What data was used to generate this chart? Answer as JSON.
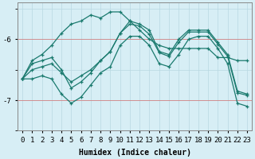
{
  "xlabel": "Humidex (Indice chaleur)",
  "background_color": "#d7eef5",
  "grid_color": "#b8d8e2",
  "line_color": "#1a7a6e",
  "xlim": [
    -0.5,
    23.5
  ],
  "ylim": [
    -7.5,
    -5.4
  ],
  "yticks": [
    -7,
    -6
  ],
  "xticks": [
    0,
    1,
    2,
    3,
    4,
    5,
    6,
    7,
    8,
    9,
    10,
    11,
    12,
    13,
    14,
    15,
    16,
    17,
    18,
    19,
    20,
    21,
    22,
    23
  ],
  "line1_x": [
    0,
    1,
    2,
    3,
    4,
    5,
    6,
    7,
    8,
    9,
    10,
    11,
    12,
    13,
    14,
    15,
    16,
    17,
    18,
    19,
    20,
    21,
    22,
    23
  ],
  "line1_y": [
    -6.65,
    -6.4,
    -6.35,
    -6.3,
    -6.5,
    -6.8,
    -6.7,
    -6.55,
    -6.35,
    -6.2,
    -5.9,
    -5.7,
    -5.75,
    -5.85,
    -6.2,
    -6.25,
    -6.0,
    -5.85,
    -5.85,
    -5.85,
    -6.05,
    -6.25,
    -6.85,
    -6.9
  ],
  "line2_x": [
    0,
    1,
    2,
    3,
    4,
    5,
    6,
    7,
    8,
    9,
    10,
    11,
    12,
    13,
    14,
    15,
    16,
    17,
    18,
    19,
    20,
    21,
    22,
    23
  ],
  "line2_y": [
    -6.65,
    -6.65,
    -6.6,
    -6.65,
    -6.9,
    -7.05,
    -6.95,
    -6.75,
    -6.55,
    -6.45,
    -6.1,
    -5.95,
    -5.95,
    -6.1,
    -6.4,
    -6.45,
    -6.25,
    -6.0,
    -5.95,
    -5.95,
    -6.15,
    -6.4,
    -7.05,
    -7.1
  ],
  "line3_x": [
    0,
    1,
    2,
    3,
    4,
    5,
    6,
    7,
    8,
    9,
    10,
    11,
    12,
    13,
    14,
    15,
    16,
    17,
    18,
    19,
    20,
    21,
    22,
    23
  ],
  "line3_y": [
    -6.65,
    -6.35,
    -6.25,
    -6.1,
    -5.9,
    -5.75,
    -5.7,
    -5.6,
    -5.65,
    -5.55,
    -5.55,
    -5.7,
    -5.85,
    -6.0,
    -6.1,
    -6.15,
    -6.15,
    -6.15,
    -6.15,
    -6.15,
    -6.3,
    -6.3,
    -6.35,
    -6.35
  ],
  "line4_x": [
    0,
    1,
    2,
    3,
    4,
    5,
    6,
    7,
    8,
    9,
    10,
    11,
    12,
    13,
    14,
    15,
    16,
    17,
    18,
    19,
    20,
    21,
    22,
    23
  ],
  "line4_y": [
    -6.65,
    -6.5,
    -6.45,
    -6.4,
    -6.55,
    -6.7,
    -6.6,
    -6.5,
    -6.35,
    -6.2,
    -5.9,
    -5.75,
    -5.78,
    -5.92,
    -6.22,
    -6.28,
    -6.05,
    -5.88,
    -5.88,
    -5.88,
    -6.08,
    -6.28,
    -6.88,
    -6.92
  ]
}
